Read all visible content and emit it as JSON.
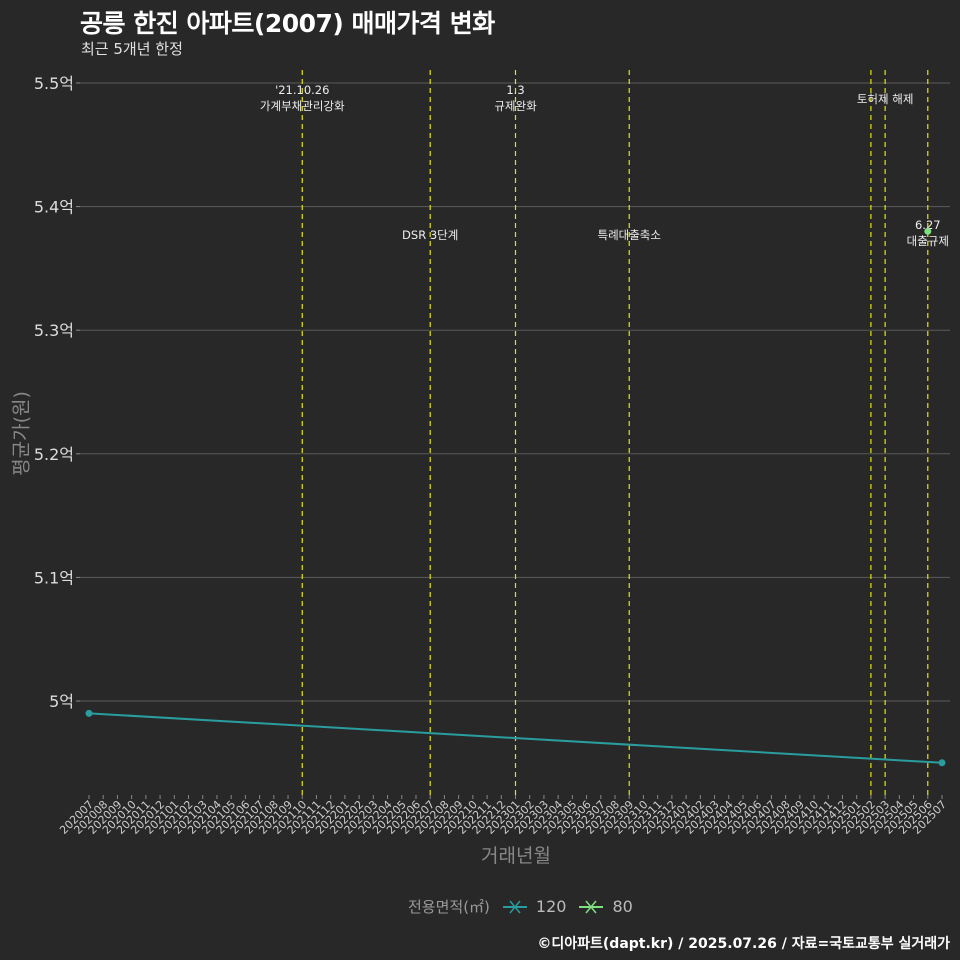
{
  "chart_data": {
    "type": "line",
    "title": "공릉 한진 아파트(2007) 매매가격 변화",
    "subtitle": "최근 5개년 한정",
    "xlabel": "거래년월",
    "ylabel": "평균가(원)",
    "y_ticks": [
      5.0,
      5.1,
      5.2,
      5.3,
      5.4,
      5.5
    ],
    "y_tick_labels": [
      "5억",
      "5.1억",
      "5.2억",
      "5.3억",
      "5.4억",
      "5.5억"
    ],
    "ylim": [
      4.93,
      5.52
    ],
    "categories": [
      "202007",
      "202008",
      "202009",
      "202010",
      "202011",
      "202012",
      "202101",
      "202102",
      "202103",
      "202104",
      "202105",
      "202106",
      "202107",
      "202108",
      "202109",
      "202110",
      "202111",
      "202112",
      "202201",
      "202202",
      "202203",
      "202204",
      "202205",
      "202206",
      "202207",
      "202208",
      "202209",
      "202210",
      "202211",
      "202212",
      "202301",
      "202302",
      "202303",
      "202304",
      "202305",
      "202306",
      "202307",
      "202308",
      "202309",
      "202310",
      "202311",
      "202312",
      "202401",
      "202402",
      "202403",
      "202404",
      "202405",
      "202406",
      "202407",
      "202408",
      "202409",
      "202410",
      "202411",
      "202412",
      "202501",
      "202502",
      "202503",
      "202504",
      "202505",
      "202506",
      "202507"
    ],
    "series": [
      {
        "name": "120",
        "color": "#2a9d9f",
        "x": [
          "202007",
          "202507"
        ],
        "values": [
          4.99,
          4.95
        ]
      },
      {
        "name": "80",
        "color": "#7ee081",
        "x": [
          "202506"
        ],
        "values": [
          5.38
        ]
      }
    ],
    "legend_title": "전용면적(㎡)",
    "events": [
      {
        "x": "202110",
        "lines": [
          "'21.10.26",
          "가계부채관리강화"
        ],
        "level": "top"
      },
      {
        "x": "202207",
        "lines": [
          "DSR 3단계"
        ],
        "level": "mid"
      },
      {
        "x": "202301",
        "lines": [
          "1.3",
          "규제완화"
        ],
        "level": "top"
      },
      {
        "x": "202309",
        "lines": [
          "특례대출축소"
        ],
        "level": "mid"
      },
      {
        "x": "202502",
        "lines": [],
        "level": "top"
      },
      {
        "x": "202503",
        "lines": [
          "토허제 해제"
        ],
        "level": "top"
      },
      {
        "x": "202506",
        "lines": [
          "6.27",
          "대출규제"
        ],
        "level": "mid"
      }
    ],
    "event_line_color": "#e6e600"
  },
  "footer": "©디아파트(dapt.kr) / 2025.07.26 / 자료=국토교통부 실거래가"
}
